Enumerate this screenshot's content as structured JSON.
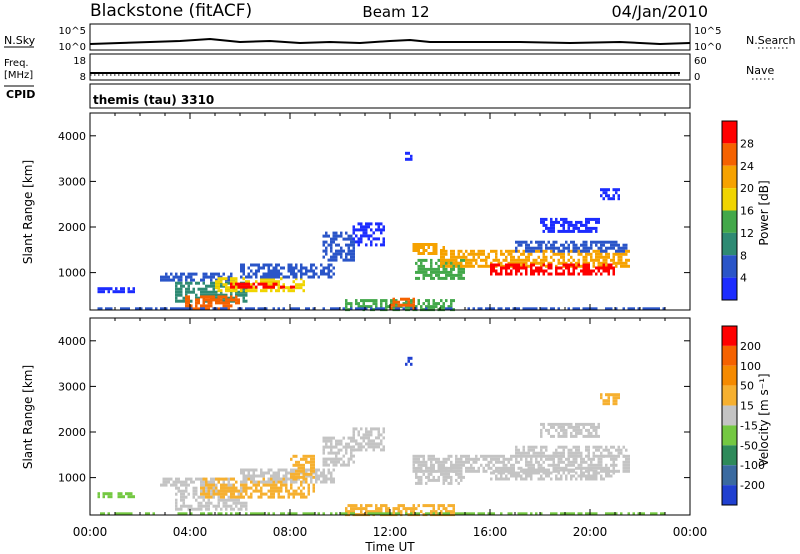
{
  "header": {
    "title": "Blackstone (fitACF)",
    "beam": "Beam 12",
    "date": "04/Jan/2010"
  },
  "status": {
    "nsky_label": "N.Sky",
    "nsky_ticks": [
      "10^5",
      "10^0"
    ],
    "nsearch_label": "N.Search",
    "nsearch_ticks": [
      "10^5",
      "10^0"
    ],
    "freq_label": "Freq.",
    "freq_unit": "[MHz]",
    "freq_ticks": [
      "18",
      "8"
    ],
    "nave_label": "Nave",
    "nave_ticks": [
      "60",
      "0"
    ],
    "cpid_label": "CPID",
    "cpid_value": "themis (tau) 3310"
  },
  "chart_data": [
    {
      "type": "heatmap",
      "title": "",
      "xlabel": "Time UT",
      "ylabel": "Slant Range [km]",
      "xlim": [
        "00:00",
        "24:00"
      ],
      "ylim": [
        180,
        4500
      ],
      "x_ticks": [
        "00:00",
        "04:00",
        "08:00",
        "12:00",
        "16:00",
        "20:00",
        "00:00"
      ],
      "y_ticks": [
        1000,
        2000,
        3000,
        4000
      ],
      "colorbar": {
        "label": "Power [dB]",
        "ticks": [
          "4",
          "8",
          "12",
          "16",
          "20",
          "24",
          "28"
        ],
        "colors": [
          "#1c2cff",
          "#2a55c8",
          "#2e8a73",
          "#43a84a",
          "#f0d400",
          "#f6a200",
          "#f56200",
          "#ff0000"
        ]
      },
      "regions": [
        {
          "t0": 0.3,
          "t1": 1.8,
          "r0": 560,
          "r1": 680,
          "color": "#1c2cff"
        },
        {
          "t0": 2.8,
          "t1": 5.8,
          "r0": 860,
          "r1": 1000,
          "color": "#2a55c8"
        },
        {
          "t0": 3.4,
          "t1": 6.2,
          "r0": 400,
          "r1": 800,
          "color": "#2e8a73"
        },
        {
          "t0": 3.8,
          "t1": 6.0,
          "r0": 220,
          "r1": 500,
          "color": "#f56200"
        },
        {
          "t0": 5.0,
          "t1": 8.6,
          "r0": 600,
          "r1": 900,
          "color": "#f0d400"
        },
        {
          "t0": 5.6,
          "t1": 8.2,
          "r0": 650,
          "r1": 780,
          "color": "#ff0000"
        },
        {
          "t0": 6.0,
          "t1": 9.8,
          "r0": 900,
          "r1": 1200,
          "color": "#2a55c8"
        },
        {
          "t0": 9.3,
          "t1": 10.6,
          "r0": 1300,
          "r1": 1900,
          "color": "#2a55c8"
        },
        {
          "t0": 10.5,
          "t1": 11.8,
          "r0": 1600,
          "r1": 2100,
          "color": "#1c2cff"
        },
        {
          "t0": 12.6,
          "t1": 12.9,
          "r0": 3500,
          "r1": 3650,
          "color": "#1c2cff"
        },
        {
          "t0": 12.9,
          "t1": 14.2,
          "r0": 1400,
          "r1": 1650,
          "color": "#f6a200"
        },
        {
          "t0": 13.0,
          "t1": 15.0,
          "r0": 900,
          "r1": 1300,
          "color": "#43a84a"
        },
        {
          "t0": 14.0,
          "t1": 21.6,
          "r0": 1150,
          "r1": 1500,
          "color": "#f6a200"
        },
        {
          "t0": 16.0,
          "t1": 21.0,
          "r0": 1000,
          "r1": 1200,
          "color": "#ff0000"
        },
        {
          "t0": 17.0,
          "t1": 21.5,
          "r0": 1500,
          "r1": 1700,
          "color": "#2a55c8"
        },
        {
          "t0": 18.0,
          "t1": 20.4,
          "r0": 1900,
          "r1": 2200,
          "color": "#1c2cff"
        },
        {
          "t0": 20.4,
          "t1": 21.1,
          "r0": 2600,
          "r1": 2850,
          "color": "#1c2cff"
        },
        {
          "t0": 10.2,
          "t1": 14.6,
          "r0": 190,
          "r1": 420,
          "color": "#43a84a"
        },
        {
          "t0": 12.0,
          "t1": 13.0,
          "r0": 250,
          "r1": 450,
          "color": "#f56200"
        },
        {
          "t0": 0.3,
          "t1": 23.0,
          "r0": 190,
          "r1": 240,
          "color": "#2a55c8"
        }
      ]
    },
    {
      "type": "heatmap",
      "title": "",
      "xlabel": "Time UT",
      "ylabel": "Slant Range [km]",
      "xlim": [
        "00:00",
        "24:00"
      ],
      "ylim": [
        180,
        4500
      ],
      "x_ticks": [
        "00:00",
        "04:00",
        "08:00",
        "12:00",
        "16:00",
        "20:00",
        "00:00"
      ],
      "y_ticks": [
        1000,
        2000,
        3000,
        4000
      ],
      "colorbar": {
        "label": "Velocity [m s⁻¹]",
        "ticks": [
          "200",
          "100",
          "50",
          "15",
          "-15",
          "-50",
          "-100",
          "-200"
        ],
        "colors": [
          "#2040d0",
          "#3a6aa0",
          "#2e8a5a",
          "#74c842",
          "#c4c4c4",
          "#f6b030",
          "#f58a00",
          "#f56200",
          "#ff0000"
        ]
      },
      "regions": [
        {
          "t0": 0.3,
          "t1": 1.8,
          "r0": 560,
          "r1": 680,
          "color": "#74c842"
        },
        {
          "t0": 2.8,
          "t1": 5.8,
          "r0": 860,
          "r1": 1000,
          "color": "#c4c4c4"
        },
        {
          "t0": 3.4,
          "t1": 6.2,
          "r0": 300,
          "r1": 800,
          "color": "#c4c4c4"
        },
        {
          "t0": 4.4,
          "t1": 9.0,
          "r0": 600,
          "r1": 1000,
          "color": "#f6b030"
        },
        {
          "t0": 6.0,
          "t1": 9.8,
          "r0": 900,
          "r1": 1200,
          "color": "#c4c4c4"
        },
        {
          "t0": 8.0,
          "t1": 9.0,
          "r0": 1000,
          "r1": 1500,
          "color": "#f6b030"
        },
        {
          "t0": 9.3,
          "t1": 10.6,
          "r0": 1300,
          "r1": 1900,
          "color": "#c4c4c4"
        },
        {
          "t0": 10.5,
          "t1": 11.8,
          "r0": 1600,
          "r1": 2100,
          "color": "#c4c4c4"
        },
        {
          "t0": 12.6,
          "t1": 12.9,
          "r0": 3500,
          "r1": 3650,
          "color": "#2040d0"
        },
        {
          "t0": 12.9,
          "t1": 21.6,
          "r0": 1150,
          "r1": 1500,
          "color": "#c4c4c4"
        },
        {
          "t0": 13.0,
          "t1": 15.0,
          "r0": 900,
          "r1": 1300,
          "color": "#c4c4c4"
        },
        {
          "t0": 16.0,
          "t1": 21.0,
          "r0": 1000,
          "r1": 1200,
          "color": "#c4c4c4"
        },
        {
          "t0": 17.0,
          "t1": 21.5,
          "r0": 1500,
          "r1": 1700,
          "color": "#c4c4c4"
        },
        {
          "t0": 18.0,
          "t1": 20.4,
          "r0": 1900,
          "r1": 2200,
          "color": "#c4c4c4"
        },
        {
          "t0": 20.4,
          "t1": 21.1,
          "r0": 2600,
          "r1": 2850,
          "color": "#f6b030"
        },
        {
          "t0": 10.2,
          "t1": 14.6,
          "r0": 190,
          "r1": 420,
          "color": "#f6b030"
        },
        {
          "t0": 0.3,
          "t1": 23.0,
          "r0": 190,
          "r1": 240,
          "color": "#74c842"
        }
      ]
    }
  ]
}
